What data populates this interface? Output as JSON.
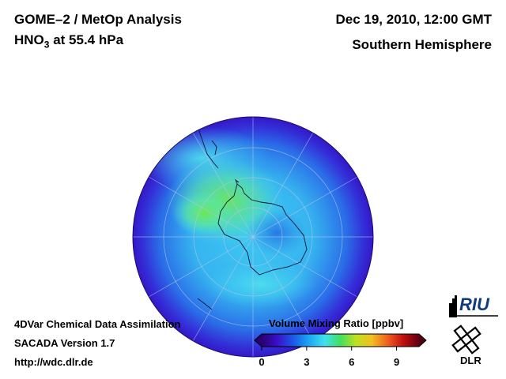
{
  "header": {
    "instrument": "GOME–2 / MetOp Analysis",
    "species_main": "HNO",
    "species_sub": "3",
    "species_rest": " at 55.4 hPa",
    "datetime": "Dec 19, 2010, 12:00 GMT",
    "region": "Southern Hemisphere"
  },
  "footer": {
    "line1": "4DVar Chemical Data Assimilation",
    "line2": "SACADA Version 1.7",
    "line3": "http://wdc.dlr.de"
  },
  "colorbar": {
    "title": "Volume Mixing Ratio [ppbv]",
    "ticks": [
      "0",
      "3",
      "6",
      "9"
    ],
    "tick_values": [
      0,
      3,
      6,
      9
    ],
    "range": [
      0,
      10.5
    ],
    "colors": [
      "#2a0070",
      "#3a10c8",
      "#1a58e8",
      "#1aa8f0",
      "#40e0f0",
      "#40e060",
      "#c0e020",
      "#f0c020",
      "#f06020",
      "#c01010",
      "#600010"
    ]
  },
  "logos": {
    "riu": "RIU",
    "dlr": "DLR"
  }
}
